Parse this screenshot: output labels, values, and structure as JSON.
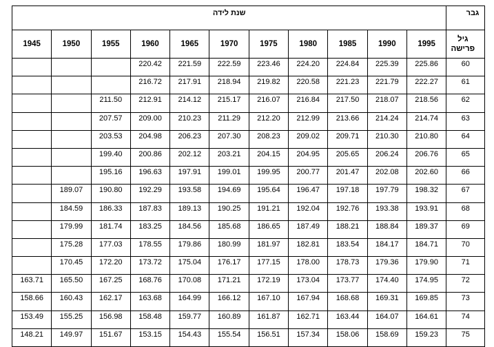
{
  "header": {
    "gender_label": "גבר",
    "birth_year_label": "שנת לידה",
    "retirement_age_label": "גיל פרישה",
    "years": [
      "1945",
      "1950",
      "1955",
      "1960",
      "1965",
      "1970",
      "1975",
      "1980",
      "1985",
      "1990",
      "1995"
    ]
  },
  "rows": [
    {
      "age": "60",
      "values": [
        "",
        "",
        "",
        "220.42",
        "221.59",
        "222.59",
        "223.46",
        "224.20",
        "224.84",
        "225.39",
        "225.86"
      ]
    },
    {
      "age": "61",
      "values": [
        "",
        "",
        "",
        "216.72",
        "217.91",
        "218.94",
        "219.82",
        "220.58",
        "221.23",
        "221.79",
        "222.27"
      ]
    },
    {
      "age": "62",
      "values": [
        "",
        "",
        "211.50",
        "212.91",
        "214.12",
        "215.17",
        "216.07",
        "216.84",
        "217.50",
        "218.07",
        "218.56"
      ]
    },
    {
      "age": "63",
      "values": [
        "",
        "",
        "207.57",
        "209.00",
        "210.23",
        "211.29",
        "212.20",
        "212.99",
        "213.66",
        "214.24",
        "214.74"
      ]
    },
    {
      "age": "64",
      "values": [
        "",
        "",
        "203.53",
        "204.98",
        "206.23",
        "207.30",
        "208.23",
        "209.02",
        "209.71",
        "210.30",
        "210.80"
      ]
    },
    {
      "age": "65",
      "values": [
        "",
        "",
        "199.40",
        "200.86",
        "202.12",
        "203.21",
        "204.15",
        "204.95",
        "205.65",
        "206.24",
        "206.76"
      ]
    },
    {
      "age": "66",
      "values": [
        "",
        "",
        "195.16",
        "196.63",
        "197.91",
        "199.01",
        "199.95",
        "200.77",
        "201.47",
        "202.08",
        "202.60"
      ]
    },
    {
      "age": "67",
      "values": [
        "",
        "189.07",
        "190.80",
        "192.29",
        "193.58",
        "194.69",
        "195.64",
        "196.47",
        "197.18",
        "197.79",
        "198.32"
      ]
    },
    {
      "age": "68",
      "values": [
        "",
        "184.59",
        "186.33",
        "187.83",
        "189.13",
        "190.25",
        "191.21",
        "192.04",
        "192.76",
        "193.38",
        "193.91"
      ]
    },
    {
      "age": "69",
      "values": [
        "",
        "179.99",
        "181.74",
        "183.25",
        "184.56",
        "185.68",
        "186.65",
        "187.49",
        "188.21",
        "188.84",
        "189.37"
      ]
    },
    {
      "age": "70",
      "values": [
        "",
        "175.28",
        "177.03",
        "178.55",
        "179.86",
        "180.99",
        "181.97",
        "182.81",
        "183.54",
        "184.17",
        "184.71"
      ]
    },
    {
      "age": "71",
      "values": [
        "",
        "170.45",
        "172.20",
        "173.72",
        "175.04",
        "176.17",
        "177.15",
        "178.00",
        "178.73",
        "179.36",
        "179.90"
      ]
    },
    {
      "age": "72",
      "values": [
        "163.71",
        "165.50",
        "167.25",
        "168.76",
        "170.08",
        "171.21",
        "172.19",
        "173.04",
        "173.77",
        "174.40",
        "174.95"
      ]
    },
    {
      "age": "73",
      "values": [
        "158.66",
        "160.43",
        "162.17",
        "163.68",
        "164.99",
        "166.12",
        "167.10",
        "167.94",
        "168.68",
        "169.31",
        "169.85"
      ]
    },
    {
      "age": "74",
      "values": [
        "153.49",
        "155.25",
        "156.98",
        "158.48",
        "159.77",
        "160.89",
        "161.87",
        "162.71",
        "163.44",
        "164.07",
        "164.61"
      ]
    },
    {
      "age": "75",
      "values": [
        "148.21",
        "149.97",
        "151.67",
        "153.15",
        "154.43",
        "155.54",
        "156.51",
        "157.34",
        "158.06",
        "158.69",
        "159.23"
      ]
    }
  ]
}
